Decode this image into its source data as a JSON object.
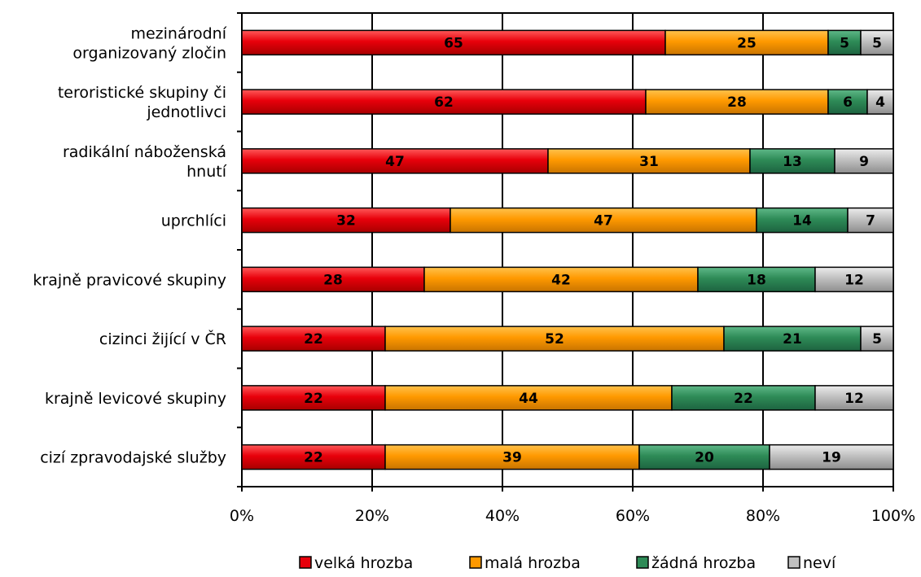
{
  "chart_data": {
    "type": "bar",
    "orientation": "horizontal",
    "stacked": "percent",
    "categories": [
      "mezinárodní organizovaný zločin",
      "teroristické skupiny či jednotlivci",
      "radikální náboženská hnutí",
      "uprchlíci",
      "krajně pravicové skupiny",
      "cizinci žijící v ČR",
      "krajně levicové skupiny",
      "cizí zpravodajské služby"
    ],
    "category_lines": [
      [
        "mezinárodní",
        "organizovaný zločin"
      ],
      [
        "teroristické skupiny či",
        "jednotlivci"
      ],
      [
        "radikální náboženská",
        "hnutí"
      ],
      [
        "uprchlíci"
      ],
      [
        "krajně pravicové skupiny"
      ],
      [
        "cizinci žijící v ČR"
      ],
      [
        "krajně levicové skupiny"
      ],
      [
        "cizí zpravodajské služby"
      ]
    ],
    "series": [
      {
        "name": "velká hrozba",
        "color": "#e8000b",
        "values": [
          65,
          62,
          47,
          32,
          28,
          22,
          22,
          22
        ]
      },
      {
        "name": "malá hrozba",
        "color": "#ff9900",
        "values": [
          25,
          28,
          31,
          47,
          42,
          52,
          44,
          39
        ]
      },
      {
        "name": "žádná hrozba",
        "color": "#2e8b57",
        "values": [
          5,
          6,
          13,
          14,
          18,
          21,
          22,
          20
        ]
      },
      {
        "name": "neví",
        "color": "#c0c0c0",
        "values": [
          5,
          4,
          9,
          7,
          12,
          5,
          12,
          19
        ]
      }
    ],
    "xlim": [
      0,
      100
    ],
    "x_ticks": [
      "0%",
      "20%",
      "40%",
      "60%",
      "80%",
      "100%"
    ],
    "grid": true,
    "legend_position": "bottom",
    "title": "",
    "xlabel": "",
    "ylabel": ""
  }
}
